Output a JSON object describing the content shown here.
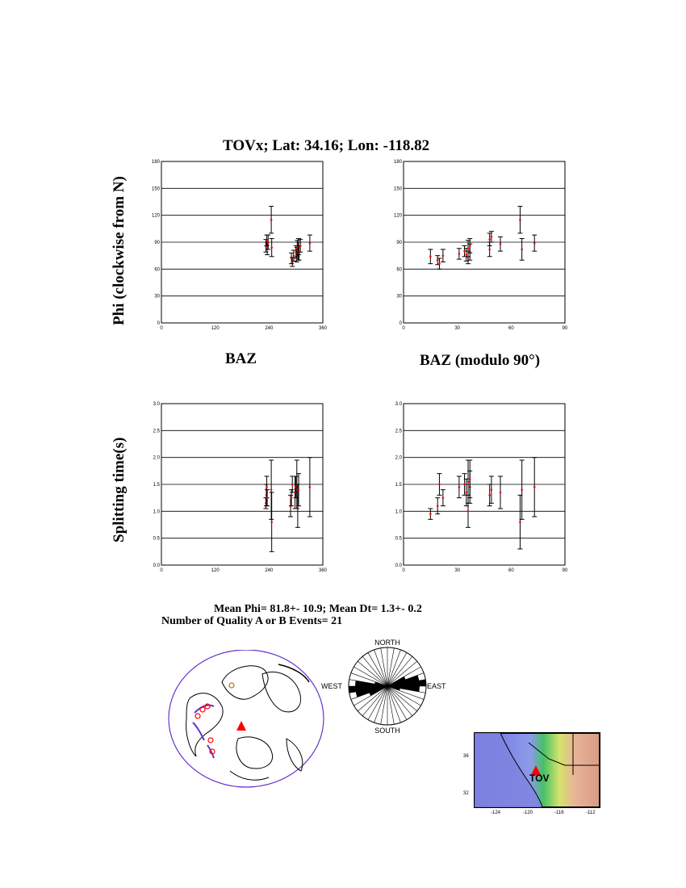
{
  "page_title": "TOVx; Lat:  34.16;  Lon: -118.82",
  "ylabel_top": "Phi (clockwise from N)",
  "ylabel_bottom": "Splitting time(s)",
  "xlabel_left": "BAZ",
  "xlabel_right": "BAZ (modulo 90°)",
  "stats": {
    "line1": "Mean Phi= 81.8+- 10.9; Mean Dt=  1.3+-  0.2",
    "line2": "Number of Quality A  or B Events= 21"
  },
  "rose": {
    "north": "NORTH",
    "south": "SOUTH",
    "east": "EAST",
    "west": "WEST"
  },
  "inset_map": {
    "station": "TOV",
    "lat_ticks": [
      "36",
      "32"
    ],
    "lon_ticks": [
      "-124",
      "-120",
      "-116",
      "-112"
    ]
  },
  "colors": {
    "errorbar": "#000000",
    "point": "#ff0000",
    "grid": "#000000",
    "station": "#ff0000",
    "globe_outline": "#6633cc"
  },
  "chart_data": [
    {
      "type": "scatter",
      "panel": "phi_vs_baz",
      "title": "TOVx; Lat:  34.16;  Lon: -118.82",
      "xlabel": "BAZ",
      "ylabel": "Phi (clockwise from N)",
      "xlim": [
        0,
        360
      ],
      "ylim": [
        0,
        180
      ],
      "xticks": [
        0,
        120,
        240,
        360
      ],
      "yticks": [
        0,
        30,
        60,
        90,
        120,
        150,
        180
      ],
      "xtick_labels": [
        "0",
        "120",
        "240",
        "360"
      ],
      "ytick_labels": [
        "0",
        "30",
        "60",
        "90",
        "120",
        "150",
        "180"
      ],
      "grid": true,
      "points": [
        {
          "x": 233,
          "y": 86,
          "err": 7
        },
        {
          "x": 235,
          "y": 92,
          "err": 6
        },
        {
          "x": 236,
          "y": 83,
          "err": 7
        },
        {
          "x": 238,
          "y": 90,
          "err": 8
        },
        {
          "x": 245,
          "y": 115,
          "err": 15
        },
        {
          "x": 246,
          "y": 84,
          "err": 10
        },
        {
          "x": 290,
          "y": 72,
          "err": 6
        },
        {
          "x": 292,
          "y": 68,
          "err": 5
        },
        {
          "x": 295,
          "y": 75,
          "err": 6
        },
        {
          "x": 300,
          "y": 79,
          "err": 7
        },
        {
          "x": 302,
          "y": 76,
          "err": 8
        },
        {
          "x": 303,
          "y": 83,
          "err": 9
        },
        {
          "x": 305,
          "y": 80,
          "err": 10
        },
        {
          "x": 306,
          "y": 85,
          "err": 9
        },
        {
          "x": 307,
          "y": 78,
          "err": 8
        },
        {
          "x": 310,
          "y": 86,
          "err": 7
        },
        {
          "x": 331,
          "y": 89,
          "err": 9
        }
      ]
    },
    {
      "type": "scatter",
      "panel": "phi_vs_baz_mod90",
      "xlabel": "BAZ (modulo 90°)",
      "ylabel": "Phi (clockwise from N)",
      "xlim": [
        0,
        90
      ],
      "ylim": [
        0,
        180
      ],
      "xticks": [
        0,
        30,
        60,
        90
      ],
      "yticks": [
        0,
        30,
        60,
        90,
        120,
        150,
        180
      ],
      "xtick_labels": [
        "0",
        "30",
        "60",
        "90"
      ],
      "ytick_labels": [
        "0",
        "30",
        "60",
        "90",
        "120",
        "150",
        "180"
      ],
      "grid": true,
      "points": [
        {
          "x": 15,
          "y": 74,
          "err": 8
        },
        {
          "x": 19,
          "y": 70,
          "err": 5
        },
        {
          "x": 20,
          "y": 66,
          "err": 6
        },
        {
          "x": 22,
          "y": 75,
          "err": 7
        },
        {
          "x": 31,
          "y": 77,
          "err": 6
        },
        {
          "x": 34,
          "y": 80,
          "err": 6
        },
        {
          "x": 35,
          "y": 76,
          "err": 7
        },
        {
          "x": 36,
          "y": 83,
          "err": 9
        },
        {
          "x": 36,
          "y": 73,
          "err": 7
        },
        {
          "x": 37,
          "y": 79,
          "err": 9
        },
        {
          "x": 37,
          "y": 86,
          "err": 8
        },
        {
          "x": 48,
          "y": 82,
          "err": 8
        },
        {
          "x": 48,
          "y": 93,
          "err": 7
        },
        {
          "x": 49,
          "y": 96,
          "err": 6
        },
        {
          "x": 54,
          "y": 88,
          "err": 8
        },
        {
          "x": 65,
          "y": 115,
          "err": 15
        },
        {
          "x": 66,
          "y": 82,
          "err": 12
        },
        {
          "x": 73,
          "y": 89,
          "err": 9
        }
      ]
    },
    {
      "type": "scatter",
      "panel": "dt_vs_baz",
      "xlabel": "BAZ",
      "ylabel": "Splitting time(s)",
      "xlim": [
        0,
        360
      ],
      "ylim": [
        0,
        3.0
      ],
      "xticks": [
        0,
        120,
        240,
        360
      ],
      "yticks": [
        0,
        0.5,
        1.0,
        1.5,
        2.0,
        2.5,
        3.0
      ],
      "xtick_labels": [
        "0",
        "120",
        "240",
        "360"
      ],
      "ytick_labels": [
        "0.0",
        "0.5",
        "1.0",
        "1.5",
        "2.0",
        "2.5",
        "3.0"
      ],
      "grid": true,
      "points": [
        {
          "x": 233,
          "y": 1.15,
          "err": 0.1
        },
        {
          "x": 234,
          "y": 1.3,
          "err": 0.2
        },
        {
          "x": 235,
          "y": 1.45,
          "err": 0.2
        },
        {
          "x": 236,
          "y": 1.25,
          "err": 0.15
        },
        {
          "x": 245,
          "y": 1.4,
          "err": 0.55
        },
        {
          "x": 246,
          "y": 0.8,
          "err": 0.55
        },
        {
          "x": 288,
          "y": 1.1,
          "err": 0.2
        },
        {
          "x": 290,
          "y": 1.25,
          "err": 0.15
        },
        {
          "x": 292,
          "y": 1.5,
          "err": 0.15
        },
        {
          "x": 298,
          "y": 1.35,
          "err": 0.3
        },
        {
          "x": 300,
          "y": 1.45,
          "err": 0.2
        },
        {
          "x": 302,
          "y": 1.5,
          "err": 0.45
        },
        {
          "x": 304,
          "y": 1.1,
          "err": 0.4
        },
        {
          "x": 306,
          "y": 1.4,
          "err": 0.3
        },
        {
          "x": 331,
          "y": 1.45,
          "err": 0.55
        }
      ]
    },
    {
      "type": "scatter",
      "panel": "dt_vs_baz_mod90",
      "xlabel": "BAZ (modulo 90°)",
      "ylabel": "Splitting time(s)",
      "xlim": [
        0,
        90
      ],
      "ylim": [
        0,
        3.0
      ],
      "xticks": [
        0,
        30,
        60,
        90
      ],
      "yticks": [
        0,
        0.5,
        1.0,
        1.5,
        2.0,
        2.5,
        3.0
      ],
      "xtick_labels": [
        "0",
        "30",
        "60",
        "90"
      ],
      "ytick_labels": [
        "0.0",
        "0.5",
        "1.0",
        "1.5",
        "2.0",
        "2.5",
        "3.0"
      ],
      "grid": true,
      "points": [
        {
          "x": 15,
          "y": 0.95,
          "err": 0.1
        },
        {
          "x": 19,
          "y": 1.1,
          "err": 0.15
        },
        {
          "x": 20,
          "y": 1.5,
          "err": 0.2
        },
        {
          "x": 22,
          "y": 1.25,
          "err": 0.15
        },
        {
          "x": 31,
          "y": 1.45,
          "err": 0.2
        },
        {
          "x": 34,
          "y": 1.5,
          "err": 0.2
        },
        {
          "x": 35,
          "y": 1.35,
          "err": 0.25
        },
        {
          "x": 36,
          "y": 1.55,
          "err": 0.4
        },
        {
          "x": 36,
          "y": 1.0,
          "err": 0.3
        },
        {
          "x": 37,
          "y": 1.45,
          "err": 0.3
        },
        {
          "x": 37,
          "y": 1.6,
          "err": 0.35
        },
        {
          "x": 48,
          "y": 1.3,
          "err": 0.2
        },
        {
          "x": 49,
          "y": 1.4,
          "err": 0.25
        },
        {
          "x": 54,
          "y": 1.35,
          "err": 0.3
        },
        {
          "x": 65,
          "y": 0.8,
          "err": 0.5
        },
        {
          "x": 66,
          "y": 1.4,
          "err": 0.55
        },
        {
          "x": 73,
          "y": 1.45,
          "err": 0.55
        }
      ]
    },
    {
      "type": "rose",
      "panel": "fast_axis_rose",
      "bin_width_deg": 10,
      "petal_bins_deg": [
        60,
        70,
        80,
        90,
        100
      ],
      "petal_counts": [
        3,
        5,
        6,
        5,
        2
      ]
    }
  ]
}
